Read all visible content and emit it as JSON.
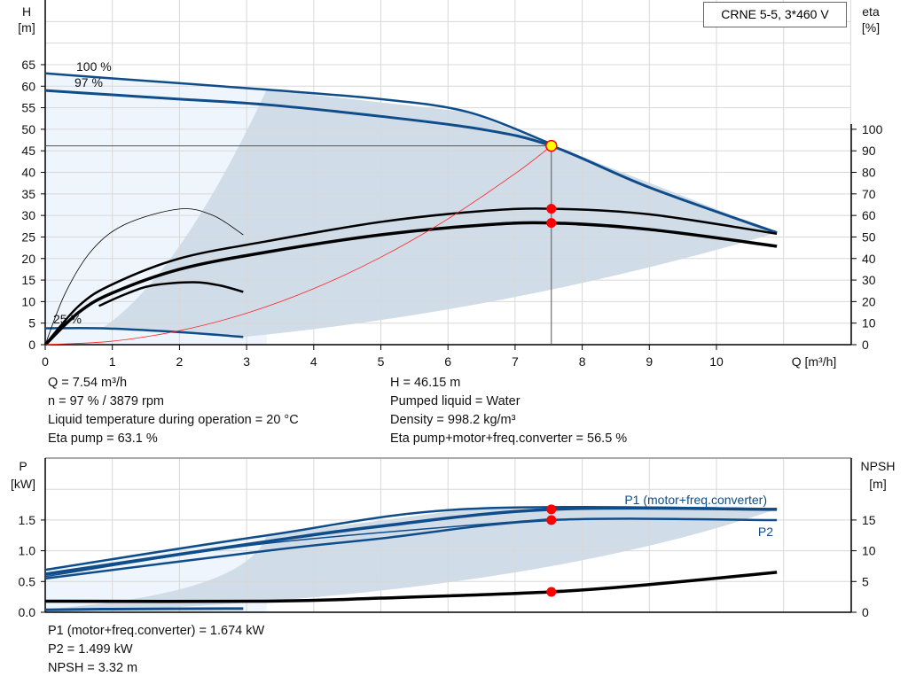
{
  "legend_box": "CRNE 5-5, 3*460 V",
  "top_info": {
    "left": [
      "Q = 7.54 m³/h",
      "n = 97 % / 3879 rpm",
      "Liquid temperature during operation = 20 °C",
      "Eta pump = 63.1 %"
    ],
    "right": [
      "H = 46.15 m",
      "Pumped liquid = Water",
      "Density = 998.2 kg/m³",
      "Eta pump+motor+freq.converter = 56.5 %"
    ]
  },
  "bottom_info": [
    "P1 (motor+freq.converter) = 1.674 kW",
    "P2 = 1.499 kW",
    "NPSH = 3.32 m"
  ],
  "colors": {
    "curve": "#0f4c8a",
    "eta": "#000000",
    "system": "#ff2020",
    "point": "#ff0000",
    "duty": "#ffff00",
    "area_dark": "#d0dce8",
    "area_light": "#eef5fc"
  },
  "chart_data": [
    {
      "type": "line",
      "title": "",
      "xlabel": "Q [m³/h]",
      "ylabel": "H\n[m]",
      "y2label": "eta\n[%]",
      "xlim": [
        0,
        12
      ],
      "ylim": [
        0,
        75
      ],
      "y2lim": [
        0,
        150
      ],
      "xticks": [
        "0",
        "1",
        "2",
        "3",
        "4",
        "5",
        "6",
        "7",
        "8",
        "9",
        "10"
      ],
      "yticks": [
        "0",
        "5",
        "10",
        "15",
        "20",
        "25",
        "30",
        "35",
        "40",
        "45",
        "50",
        "55",
        "60",
        "65"
      ],
      "y2ticks": [
        "0",
        "10",
        "20",
        "30",
        "40",
        "50",
        "60",
        "70",
        "80",
        "90",
        "100"
      ],
      "grid": true,
      "curve_labels": [
        "100 %",
        "97 %",
        "25 %"
      ],
      "series": [
        {
          "id": "head-100",
          "axis": "H",
          "x": [
            0,
            1,
            2,
            3.3,
            5,
            6.3,
            7.54
          ],
          "y": [
            63,
            61.8,
            60.7,
            59.2,
            57,
            54,
            46.6
          ]
        },
        {
          "id": "head-97",
          "axis": "H",
          "x": [
            0,
            1,
            2,
            3.3,
            5,
            6.5,
            7.54,
            9,
            10.9
          ],
          "y": [
            59,
            58,
            57,
            55.7,
            53,
            50,
            46.15,
            36.5,
            26
          ]
        },
        {
          "id": "head-25",
          "axis": "H",
          "x": [
            0,
            0.85,
            2,
            2.95
          ],
          "y": [
            3.8,
            3.8,
            2.9,
            1.8
          ]
        },
        {
          "id": "eta-pump-97",
          "axis": "eta",
          "x": [
            0,
            0.5,
            1,
            2,
            3.3,
            5,
            6.5,
            7.54,
            9,
            10.9
          ],
          "y": [
            0,
            18,
            28,
            40,
            48,
            57,
            62,
            63.1,
            60.5,
            51.5
          ]
        },
        {
          "id": "eta-total-97",
          "axis": "eta",
          "x": [
            0,
            0.5,
            1,
            2,
            3.3,
            5,
            6.5,
            7.54,
            9,
            10.9
          ],
          "y": [
            0,
            15,
            24,
            35,
            43,
            51,
            55.5,
            56.5,
            53.5,
            45.7
          ]
        },
        {
          "id": "eta-pump-25",
          "axis": "eta",
          "x": [
            0,
            0.3,
            0.7,
            1.2,
            2,
            2.5,
            2.95
          ],
          "y": [
            0,
            24,
            44,
            56,
            63,
            60,
            51
          ]
        },
        {
          "id": "eta-total-25",
          "axis": "eta",
          "x": [
            0.8,
            1.2,
            1.6,
            2.2,
            2.6,
            2.95
          ],
          "y": [
            18,
            23.5,
            27.5,
            29,
            27.5,
            24.5
          ]
        },
        {
          "id": "system-curve",
          "axis": "H",
          "x": [
            0,
            1,
            2,
            3,
            4,
            5,
            6,
            7,
            7.54
          ],
          "y": [
            0,
            0.81,
            3.25,
            7.3,
            13,
            20.3,
            29.2,
            39.7,
            46.15
          ]
        }
      ],
      "duty_point": {
        "Q": 7.54,
        "H": 46.15,
        "eta_pump": 63.1,
        "eta_total": 56.5
      }
    },
    {
      "type": "line",
      "title": "",
      "ylabel": "P\n[kW]",
      "y2label": "NPSH\n[m]",
      "xlim": [
        0,
        12
      ],
      "ylim": [
        0,
        2.2
      ],
      "y2lim": [
        0,
        22
      ],
      "yticks": [
        "0.0",
        "0.5",
        "1.0",
        "1.5"
      ],
      "y2ticks": [
        "0",
        "5",
        "10",
        "15"
      ],
      "grid": true,
      "series": [
        {
          "name": "P1 (motor+freq.converter)",
          "id": "p1-100",
          "axis": "P",
          "x": [
            0,
            3.3,
            6.3,
            10.9
          ],
          "y": [
            0.69,
            1.25,
            1.68,
            1.68
          ]
        },
        {
          "id": "p1-97",
          "axis": "P",
          "x": [
            0,
            3.3,
            5,
            7.54,
            10.9
          ],
          "y": [
            0.62,
            1.15,
            1.4,
            1.674,
            1.674
          ]
        },
        {
          "id": "p2-ref",
          "axis": "P",
          "x": [
            0,
            3.3,
            7.54
          ],
          "y": [
            0.58,
            1.12,
            1.52
          ]
        },
        {
          "name": "P2",
          "id": "p2-97",
          "axis": "P",
          "x": [
            0,
            3.3,
            5,
            7.54,
            10.9
          ],
          "y": [
            0.55,
            1.0,
            1.2,
            1.499,
            1.499
          ]
        },
        {
          "id": "p-25",
          "axis": "P",
          "x": [
            0,
            0.85,
            2.95
          ],
          "y": [
            0.04,
            0.05,
            0.06
          ]
        },
        {
          "id": "npsh",
          "axis": "NPSH",
          "x": [
            0,
            3.3,
            5,
            7.54,
            9,
            10.9
          ],
          "y": [
            1.8,
            1.8,
            2.3,
            3.32,
            4.5,
            6.5
          ]
        }
      ],
      "duty_point": {
        "Q": 7.54,
        "P1": 1.674,
        "P2": 1.499,
        "NPSH": 3.32
      }
    }
  ]
}
